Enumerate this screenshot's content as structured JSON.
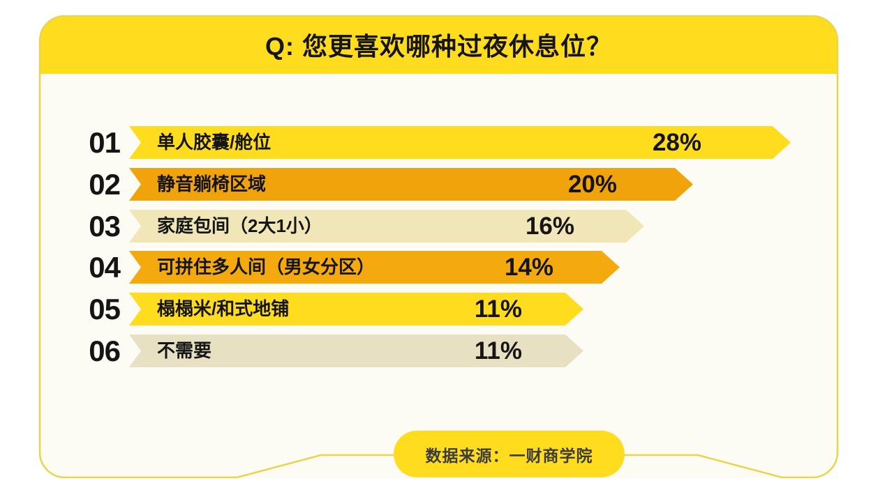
{
  "title": "Q: 您更喜欢哪种过夜休息位？",
  "source_label": "数据来源：一财商学院",
  "colors": {
    "bright_yellow": "#FFDD1E",
    "orange": "#F1A30B",
    "orange_light": "#F4A90E",
    "cream": "#F0E6B8",
    "cream_dark": "#E7E0C2",
    "frame_border": "#E9D54B",
    "panel_background": "#FDFCF4",
    "text": "#151515",
    "source_text": "#3C3C3C"
  },
  "chart_data": {
    "type": "bar",
    "orientation": "horizontal",
    "title": "Q: 您更喜欢哪种过夜休息位？",
    "rank_labels": [
      "01",
      "02",
      "03",
      "04",
      "05",
      "06"
    ],
    "categories": [
      "单人胶囊/舱位",
      "静音躺椅区域",
      "家庭包间（2大1小）",
      "可拼住多人间（男女分区）",
      "榻榻米/和式地铺",
      "不需要"
    ],
    "values": [
      28,
      20,
      16,
      14,
      11,
      11
    ],
    "value_labels": [
      "28%",
      "20%",
      "16%",
      "14%",
      "11%",
      "11%"
    ],
    "bar_colors": [
      "#FFDD1E",
      "#F1A30B",
      "#F0E6B8",
      "#F4A90E",
      "#FFDD1E",
      "#E7E0C2"
    ],
    "bar_shape": "chevron-arrow",
    "xlim": [
      0,
      30
    ],
    "grid": false,
    "legend": false,
    "source": "数据来源：一财商学院"
  }
}
